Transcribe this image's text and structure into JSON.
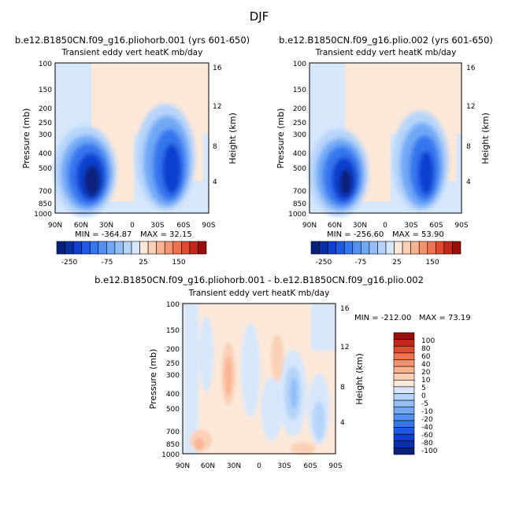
{
  "figure_title": "DJF",
  "chart_data": [
    {
      "type": "heatmap",
      "title": "b.e12.B1850CN.f09_g16.pliohorb.001 (yrs 601-650)",
      "subtitle": "Transient eddy vert heatK mb/day",
      "ylabel": "Pressure (mb)",
      "ylabel_right": "Height (km)",
      "x_ticks": [
        "90N",
        "60N",
        "30N",
        "0",
        "30S",
        "60S",
        "90S"
      ],
      "y_ticks": [
        "100",
        "150",
        "200",
        "250",
        "300",
        "400",
        "500",
        "700",
        "850",
        "1000"
      ],
      "y_scale": "log",
      "y_right_ticks": [
        "16",
        "12",
        "8",
        "4"
      ],
      "min_label": "MIN = -364.87",
      "max_label": "MAX = 32.15",
      "min": -364.87,
      "max": 32.15,
      "colorbar_ticks": [
        "-250",
        "-75",
        "25",
        "150"
      ]
    },
    {
      "type": "heatmap",
      "title": "b.e12.B1850CN.f09_g16.plio.002 (yrs 601-650)",
      "subtitle": "Transient eddy vert heatK mb/day",
      "ylabel": "Pressure (mb)",
      "ylabel_right": "Height (km)",
      "x_ticks": [
        "90N",
        "60N",
        "30N",
        "0",
        "30S",
        "60S",
        "90S"
      ],
      "y_ticks": [
        "100",
        "150",
        "200",
        "250",
        "300",
        "400",
        "500",
        "700",
        "850",
        "1000"
      ],
      "y_scale": "log",
      "y_right_ticks": [
        "16",
        "12",
        "8",
        "4"
      ],
      "min_label": "MIN = -256.60",
      "max_label": "MAX = 53.90",
      "min": -256.6,
      "max": 53.9,
      "colorbar_ticks": [
        "-250",
        "-75",
        "25",
        "150"
      ]
    },
    {
      "type": "heatmap",
      "title": "b.e12.B1850CN.f09_g16.pliohorb.001 - b.e12.B1850CN.f09_g16.plio.002",
      "subtitle": "Transient eddy vert heatK mb/day",
      "ylabel": "Pressure (mb)",
      "ylabel_right": "Height (km)",
      "x_ticks": [
        "90N",
        "60N",
        "30N",
        "0",
        "30S",
        "60S",
        "90S"
      ],
      "y_ticks": [
        "100",
        "150",
        "200",
        "250",
        "300",
        "400",
        "500",
        "700",
        "850",
        "1000"
      ],
      "y_scale": "log",
      "y_right_ticks": [
        "16",
        "12",
        "8",
        "4"
      ],
      "minmax_label": "MIN = -212.00   MAX = 73.19",
      "min": -212.0,
      "max": 73.19,
      "colorbar_ticks": [
        "100",
        "80",
        "60",
        "40",
        "20",
        "10",
        "5",
        "0",
        "-5",
        "-10",
        "-20",
        "-40",
        "-60",
        "-80",
        "-100"
      ]
    }
  ],
  "palette": [
    "#08217a",
    "#0b2fa4",
    "#1040cf",
    "#1f5ae6",
    "#3577ee",
    "#5290f2",
    "#71a8f5",
    "#93bff8",
    "#b6d4fa",
    "#d6e7fc",
    "#fce8d9",
    "#fbd0b5",
    "#f9b391",
    "#f59470",
    "#f0724f",
    "#e04a30",
    "#c4281a",
    "#9a0f0c"
  ]
}
